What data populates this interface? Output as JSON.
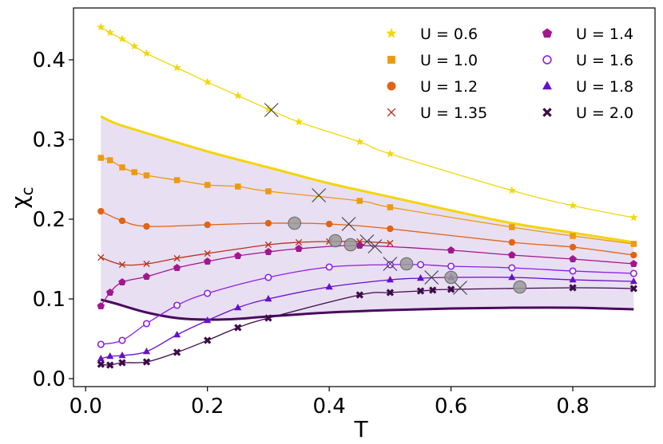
{
  "chart_data": {
    "type": "line",
    "xlabel": "T",
    "ylabel": "χ",
    "ylabel_sub": "c",
    "xlim": [
      -0.02,
      0.935
    ],
    "ylim": [
      -0.01,
      0.465
    ],
    "xticks": [
      0.0,
      0.2,
      0.4,
      0.6,
      0.8
    ],
    "xtick_labels": [
      "0.0",
      "0.2",
      "0.4",
      "0.6",
      "0.8"
    ],
    "yticks": [
      0.0,
      0.1,
      0.2,
      0.3,
      0.4
    ],
    "ytick_labels": [
      "0.0",
      "0.1",
      "0.2",
      "0.3",
      "0.4"
    ],
    "legend_position": "top-right",
    "series": [
      {
        "name": "U = 0.6",
        "color": "#f2d70f",
        "marker": "star",
        "x": [
          0.025,
          0.04,
          0.06,
          0.08,
          0.1,
          0.15,
          0.2,
          0.25,
          0.3,
          0.35,
          0.45,
          0.5,
          0.7,
          0.8,
          0.9
        ],
        "y": [
          0.441,
          0.434,
          0.426,
          0.417,
          0.408,
          0.39,
          0.372,
          0.355,
          0.338,
          0.322,
          0.297,
          0.282,
          0.236,
          0.217,
          0.202
        ]
      },
      {
        "name": "U = 1.0",
        "color": "#ec9a0f",
        "marker": "square",
        "x": [
          0.025,
          0.04,
          0.06,
          0.08,
          0.1,
          0.15,
          0.2,
          0.25,
          0.3,
          0.45,
          0.5,
          0.7,
          0.8,
          0.9
        ],
        "y": [
          0.277,
          0.274,
          0.265,
          0.259,
          0.255,
          0.249,
          0.243,
          0.241,
          0.235,
          0.223,
          0.215,
          0.19,
          0.179,
          0.169
        ]
      },
      {
        "name": "U = 1.2",
        "color": "#e06414",
        "marker": "circle",
        "x": [
          0.025,
          0.06,
          0.1,
          0.2,
          0.3,
          0.4,
          0.5,
          0.7,
          0.8,
          0.9
        ],
        "y": [
          0.21,
          0.198,
          0.191,
          0.193,
          0.195,
          0.194,
          0.188,
          0.171,
          0.165,
          0.155
        ]
      },
      {
        "name": "U = 1.35",
        "color": "#b8321c",
        "marker": "x",
        "x": [
          0.025,
          0.06,
          0.1,
          0.15,
          0.2,
          0.3,
          0.35,
          0.4,
          0.45,
          0.5
        ],
        "y": [
          0.152,
          0.143,
          0.144,
          0.151,
          0.157,
          0.168,
          0.171,
          0.172,
          0.172,
          0.17
        ]
      },
      {
        "name": "U = 1.4",
        "color": "#a3168f",
        "marker": "pentagon",
        "x": [
          0.025,
          0.04,
          0.06,
          0.1,
          0.15,
          0.2,
          0.25,
          0.3,
          0.35,
          0.45,
          0.6,
          0.7,
          0.8,
          0.9
        ],
        "y": [
          0.091,
          0.108,
          0.121,
          0.128,
          0.139,
          0.147,
          0.154,
          0.159,
          0.163,
          0.167,
          0.161,
          0.155,
          0.15,
          0.144
        ]
      },
      {
        "name": "U = 1.6",
        "color": "#8d1ee6",
        "marker": "open-circle",
        "x": [
          0.025,
          0.06,
          0.1,
          0.15,
          0.2,
          0.3,
          0.4,
          0.5,
          0.55,
          0.6,
          0.7,
          0.8,
          0.9
        ],
        "y": [
          0.043,
          0.048,
          0.069,
          0.092,
          0.107,
          0.127,
          0.14,
          0.143,
          0.143,
          0.141,
          0.139,
          0.135,
          0.132
        ]
      },
      {
        "name": "U = 1.8",
        "color": "#6510cc",
        "marker": "triangle",
        "x": [
          0.025,
          0.04,
          0.06,
          0.1,
          0.15,
          0.2,
          0.25,
          0.3,
          0.4,
          0.5,
          0.55,
          0.6,
          0.7,
          0.8,
          0.9
        ],
        "y": [
          0.025,
          0.028,
          0.029,
          0.034,
          0.055,
          0.073,
          0.089,
          0.1,
          0.115,
          0.124,
          0.126,
          0.127,
          0.127,
          0.124,
          0.122
        ]
      },
      {
        "name": "U = 2.0",
        "color": "#3d0a4a",
        "marker": "thick-x",
        "x": [
          0.025,
          0.04,
          0.06,
          0.1,
          0.15,
          0.2,
          0.25,
          0.3,
          0.45,
          0.5,
          0.55,
          0.57,
          0.6,
          0.8,
          0.9
        ],
        "y": [
          0.018,
          0.017,
          0.02,
          0.021,
          0.033,
          0.048,
          0.064,
          0.076,
          0.105,
          0.108,
          0.11,
          0.111,
          0.112,
          0.114,
          0.113
        ]
      }
    ],
    "upper_boundary": {
      "color": "#f5d40a",
      "x": [
        0.025,
        0.05,
        0.1,
        0.2,
        0.3,
        0.4,
        0.5,
        0.6,
        0.7,
        0.8,
        0.9
      ],
      "y": [
        0.329,
        0.32,
        0.308,
        0.285,
        0.265,
        0.245,
        0.228,
        0.211,
        0.195,
        0.183,
        0.171
      ]
    },
    "lower_boundary": {
      "color": "#4a0a5e",
      "x": [
        0.025,
        0.05,
        0.1,
        0.15,
        0.2,
        0.25,
        0.3,
        0.4,
        0.5,
        0.6,
        0.7,
        0.8,
        0.9
      ],
      "y": [
        0.099,
        0.094,
        0.083,
        0.076,
        0.074,
        0.075,
        0.078,
        0.083,
        0.086,
        0.088,
        0.089,
        0.089,
        0.087
      ]
    },
    "shaded_region_color": "#e8dff2",
    "crossover_x_markers": {
      "color": "#444444",
      "x": [
        0.305,
        0.383,
        0.432,
        0.462,
        0.475,
        0.5,
        0.568,
        0.615
      ],
      "y": [
        0.337,
        0.23,
        0.194,
        0.172,
        0.166,
        0.144,
        0.127,
        0.114
      ]
    },
    "crossover_circle_markers": {
      "color": "#9a9a9a",
      "x": [
        0.343,
        0.41,
        0.435,
        0.527,
        0.6,
        0.713
      ],
      "y": [
        0.195,
        0.173,
        0.168,
        0.144,
        0.127,
        0.115
      ]
    }
  }
}
